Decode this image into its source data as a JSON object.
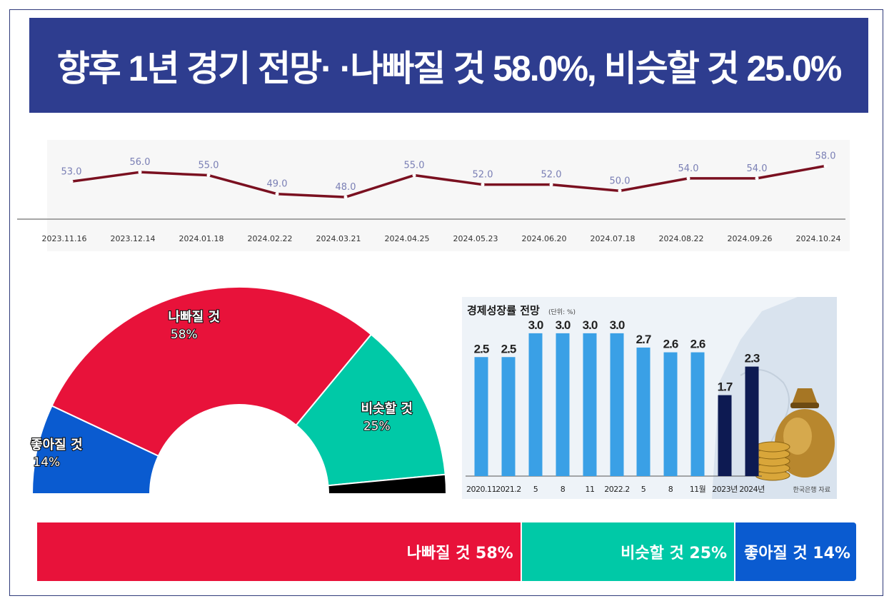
{
  "title": "향후 1년 경기 전망· ·나빠질 것 58.0%, 비슷할 것 25.0%",
  "colors": {
    "title_bg": "#2e3d8f",
    "line": "#7a1020",
    "line_label": "#7a7fb5",
    "worse": "#e8123a",
    "same": "#00c9a7",
    "better": "#0a5bd0",
    "unknown": "#000000",
    "bar_light": "#3aa0e6",
    "bar_dark": "#0d1a52"
  },
  "chart_data": [
    {
      "type": "line",
      "title": "",
      "x": [
        "2023.11.16",
        "2023.12.14",
        "2024.01.18",
        "2024.02.22",
        "2024.03.21",
        "2024.04.25",
        "2024.05.23",
        "2024.06.20",
        "2024.07.18",
        "2024.08.22",
        "2024.09.26",
        "2024.10.24"
      ],
      "values": [
        53.0,
        56.0,
        55.0,
        49.0,
        48.0,
        55.0,
        52.0,
        52.0,
        50.0,
        54.0,
        54.0,
        58.0
      ],
      "labels": [
        "53.0",
        "56.0",
        "55.0",
        "49.0",
        "48.0",
        "55.0",
        "52.0",
        "52.0",
        "50.0",
        "54.0",
        "54.0",
        "58.0"
      ],
      "ylim": [
        40,
        62
      ]
    },
    {
      "type": "pie",
      "shape": "half-donut",
      "categories": [
        "좋아질 것",
        "나빠질 것",
        "비슷할 것",
        ""
      ],
      "values": [
        14,
        58,
        25,
        3
      ],
      "value_labels": [
        "14%",
        "58%",
        "25%",
        ""
      ]
    },
    {
      "type": "bar",
      "title": "경제성장률 전망",
      "unit_note": "(단위: %)",
      "categories": [
        "2020.11",
        "2021.2",
        "5",
        "8",
        "11",
        "2022.2",
        "5",
        "8",
        "11월",
        "2023년",
        "2024년"
      ],
      "values": [
        2.5,
        2.5,
        3.0,
        3.0,
        3.0,
        3.0,
        2.7,
        2.6,
        2.6,
        1.7,
        2.3
      ],
      "value_labels": [
        "2.5",
        "2.5",
        "3.0",
        "3.0",
        "3.0",
        "3.0",
        "2.7",
        "2.6",
        "2.6",
        "1.7",
        "2.3"
      ],
      "highlight": [
        false,
        false,
        false,
        false,
        false,
        false,
        false,
        false,
        false,
        true,
        true
      ],
      "source": "한국은행 자료",
      "ylim": [
        0,
        3.6
      ]
    },
    {
      "type": "bar",
      "shape": "stacked-horizontal",
      "categories": [
        "나빠질 것",
        "비슷할 것",
        "좋아질 것"
      ],
      "values": [
        58,
        25,
        14
      ],
      "labels": [
        "나빠질 것 58%",
        "비슷할 것 25%",
        "좋아질 것 14%"
      ]
    }
  ]
}
